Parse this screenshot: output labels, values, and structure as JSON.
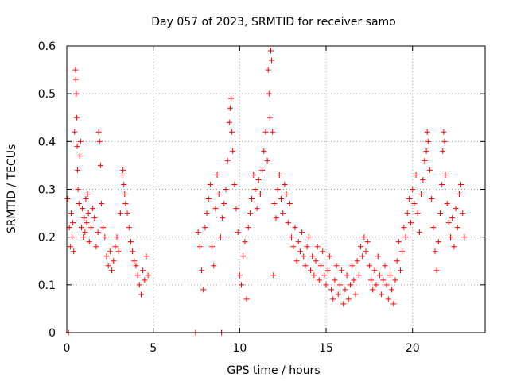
{
  "chart_data": {
    "type": "scatter",
    "title": "Day 057 of 2023, SRMTID for receiver samo",
    "xlabel": "GPS time / hours",
    "ylabel": "SRMTID / TECUs",
    "xlim": [
      0,
      24.2
    ],
    "ylim": [
      0,
      0.6
    ],
    "xticks": [
      0,
      5,
      10,
      15,
      20
    ],
    "xtick_labels": [
      "0",
      "5",
      "10",
      "15",
      "20"
    ],
    "yticks": [
      0,
      0.1,
      0.2,
      0.3,
      0.4,
      0.5,
      0.6
    ],
    "ytick_labels": [
      "0",
      "0.1",
      "0.2",
      "0.3",
      "0.4",
      "0.5",
      "0.6"
    ],
    "grid": true,
    "marker": "+",
    "color": "#ff0000",
    "series": [
      {
        "name": "SRMTID",
        "points": [
          [
            0.05,
            0.28
          ],
          [
            0.1,
            0.0
          ],
          [
            0.15,
            0.22
          ],
          [
            0.2,
            0.18
          ],
          [
            0.25,
            0.25
          ],
          [
            0.3,
            0.2
          ],
          [
            0.35,
            0.23
          ],
          [
            0.4,
            0.17
          ],
          [
            0.45,
            0.42
          ],
          [
            0.5,
            0.55
          ],
          [
            0.52,
            0.53
          ],
          [
            0.55,
            0.5
          ],
          [
            0.58,
            0.45
          ],
          [
            0.6,
            0.39
          ],
          [
            0.62,
            0.34
          ],
          [
            0.65,
            0.3
          ],
          [
            0.7,
            0.27
          ],
          [
            0.75,
            0.37
          ],
          [
            0.8,
            0.4
          ],
          [
            0.85,
            0.22
          ],
          [
            0.9,
            0.26
          ],
          [
            0.95,
            0.2
          ],
          [
            1.0,
            0.24
          ],
          [
            1.05,
            0.21
          ],
          [
            1.1,
            0.28
          ],
          [
            1.15,
            0.23
          ],
          [
            1.2,
            0.29
          ],
          [
            1.25,
            0.25
          ],
          [
            1.3,
            0.19
          ],
          [
            1.4,
            0.22
          ],
          [
            1.5,
            0.26
          ],
          [
            1.6,
            0.24
          ],
          [
            1.7,
            0.18
          ],
          [
            1.8,
            0.21
          ],
          [
            1.85,
            0.42
          ],
          [
            1.9,
            0.4
          ],
          [
            1.95,
            0.35
          ],
          [
            2.0,
            0.27
          ],
          [
            2.1,
            0.22
          ],
          [
            2.2,
            0.2
          ],
          [
            2.3,
            0.16
          ],
          [
            2.4,
            0.14
          ],
          [
            2.5,
            0.17
          ],
          [
            2.6,
            0.13
          ],
          [
            2.7,
            0.15
          ],
          [
            2.8,
            0.18
          ],
          [
            2.9,
            0.2
          ],
          [
            3.0,
            0.17
          ],
          [
            3.1,
            0.25
          ],
          [
            3.2,
            0.33
          ],
          [
            3.25,
            0.34
          ],
          [
            3.3,
            0.31
          ],
          [
            3.35,
            0.29
          ],
          [
            3.4,
            0.27
          ],
          [
            3.5,
            0.25
          ],
          [
            3.6,
            0.22
          ],
          [
            3.7,
            0.19
          ],
          [
            3.8,
            0.17
          ],
          [
            3.9,
            0.15
          ],
          [
            4.0,
            0.14
          ],
          [
            4.1,
            0.12
          ],
          [
            4.2,
            0.1
          ],
          [
            4.3,
            0.08
          ],
          [
            4.4,
            0.13
          ],
          [
            4.5,
            0.11
          ],
          [
            4.6,
            0.16
          ],
          [
            4.7,
            0.12
          ],
          [
            7.45,
            0.0
          ],
          [
            7.6,
            0.21
          ],
          [
            7.7,
            0.18
          ],
          [
            7.8,
            0.13
          ],
          [
            7.9,
            0.09
          ],
          [
            8.0,
            0.22
          ],
          [
            8.1,
            0.25
          ],
          [
            8.2,
            0.28
          ],
          [
            8.3,
            0.31
          ],
          [
            8.4,
            0.18
          ],
          [
            8.5,
            0.14
          ],
          [
            8.6,
            0.26
          ],
          [
            8.7,
            0.33
          ],
          [
            8.8,
            0.29
          ],
          [
            8.9,
            0.2
          ],
          [
            8.95,
            0.0
          ],
          [
            9.0,
            0.24
          ],
          [
            9.1,
            0.27
          ],
          [
            9.2,
            0.3
          ],
          [
            9.3,
            0.36
          ],
          [
            9.4,
            0.44
          ],
          [
            9.45,
            0.47
          ],
          [
            9.5,
            0.49
          ],
          [
            9.55,
            0.42
          ],
          [
            9.6,
            0.38
          ],
          [
            9.7,
            0.31
          ],
          [
            9.8,
            0.26
          ],
          [
            9.9,
            0.21
          ],
          [
            10.0,
            0.12
          ],
          [
            10.1,
            0.1
          ],
          [
            10.2,
            0.16
          ],
          [
            10.3,
            0.19
          ],
          [
            10.4,
            0.07
          ],
          [
            10.5,
            0.22
          ],
          [
            10.6,
            0.25
          ],
          [
            10.7,
            0.28
          ],
          [
            10.8,
            0.33
          ],
          [
            10.9,
            0.3
          ],
          [
            11.0,
            0.26
          ],
          [
            11.1,
            0.32
          ],
          [
            11.2,
            0.29
          ],
          [
            11.3,
            0.34
          ],
          [
            11.4,
            0.38
          ],
          [
            11.5,
            0.42
          ],
          [
            11.6,
            0.36
          ],
          [
            11.65,
            0.55
          ],
          [
            11.7,
            0.5
          ],
          [
            11.75,
            0.45
          ],
          [
            11.8,
            0.59
          ],
          [
            11.85,
            0.57
          ],
          [
            11.9,
            0.42
          ],
          [
            11.95,
            0.12
          ],
          [
            12.0,
            0.27
          ],
          [
            12.1,
            0.24
          ],
          [
            12.2,
            0.3
          ],
          [
            12.3,
            0.33
          ],
          [
            12.4,
            0.28
          ],
          [
            12.5,
            0.25
          ],
          [
            12.6,
            0.31
          ],
          [
            12.7,
            0.29
          ],
          [
            12.8,
            0.23
          ],
          [
            12.9,
            0.27
          ],
          [
            13.0,
            0.2
          ],
          [
            13.1,
            0.18
          ],
          [
            13.2,
            0.22
          ],
          [
            13.3,
            0.15
          ],
          [
            13.4,
            0.19
          ],
          [
            13.5,
            0.17
          ],
          [
            13.6,
            0.21
          ],
          [
            13.7,
            0.16
          ],
          [
            13.8,
            0.14
          ],
          [
            13.9,
            0.18
          ],
          [
            14.0,
            0.2
          ],
          [
            14.1,
            0.13
          ],
          [
            14.2,
            0.16
          ],
          [
            14.3,
            0.12
          ],
          [
            14.4,
            0.15
          ],
          [
            14.5,
            0.18
          ],
          [
            14.6,
            0.11
          ],
          [
            14.7,
            0.14
          ],
          [
            14.8,
            0.17
          ],
          [
            14.9,
            0.12
          ],
          [
            15.0,
            0.1
          ],
          [
            15.1,
            0.13
          ],
          [
            15.2,
            0.16
          ],
          [
            15.3,
            0.09
          ],
          [
            15.4,
            0.07
          ],
          [
            15.5,
            0.11
          ],
          [
            15.6,
            0.14
          ],
          [
            15.7,
            0.08
          ],
          [
            15.8,
            0.1
          ],
          [
            15.9,
            0.13
          ],
          [
            16.0,
            0.06
          ],
          [
            16.1,
            0.09
          ],
          [
            16.2,
            0.12
          ],
          [
            16.3,
            0.07
          ],
          [
            16.4,
            0.1
          ],
          [
            16.5,
            0.14
          ],
          [
            16.6,
            0.11
          ],
          [
            16.7,
            0.08
          ],
          [
            16.8,
            0.15
          ],
          [
            16.9,
            0.12
          ],
          [
            17.0,
            0.18
          ],
          [
            17.1,
            0.16
          ],
          [
            17.2,
            0.2
          ],
          [
            17.3,
            0.17
          ],
          [
            17.4,
            0.19
          ],
          [
            17.5,
            0.14
          ],
          [
            17.6,
            0.11
          ],
          [
            17.7,
            0.09
          ],
          [
            17.8,
            0.13
          ],
          [
            17.9,
            0.1
          ],
          [
            18.0,
            0.16
          ],
          [
            18.1,
            0.12
          ],
          [
            18.2,
            0.08
          ],
          [
            18.3,
            0.11
          ],
          [
            18.4,
            0.14
          ],
          [
            18.5,
            0.1
          ],
          [
            18.6,
            0.07
          ],
          [
            18.7,
            0.12
          ],
          [
            18.8,
            0.09
          ],
          [
            18.9,
            0.06
          ],
          [
            19.0,
            0.11
          ],
          [
            19.1,
            0.15
          ],
          [
            19.2,
            0.19
          ],
          [
            19.3,
            0.13
          ],
          [
            19.4,
            0.17
          ],
          [
            19.5,
            0.22
          ],
          [
            19.6,
            0.2
          ],
          [
            19.7,
            0.25
          ],
          [
            19.8,
            0.28
          ],
          [
            19.9,
            0.23
          ],
          [
            20.0,
            0.3
          ],
          [
            20.1,
            0.27
          ],
          [
            20.2,
            0.33
          ],
          [
            20.3,
            0.25
          ],
          [
            20.4,
            0.21
          ],
          [
            20.5,
            0.29
          ],
          [
            20.6,
            0.32
          ],
          [
            20.7,
            0.36
          ],
          [
            20.8,
            0.38
          ],
          [
            20.85,
            0.42
          ],
          [
            20.9,
            0.4
          ],
          [
            21.0,
            0.34
          ],
          [
            21.1,
            0.28
          ],
          [
            21.2,
            0.22
          ],
          [
            21.3,
            0.17
          ],
          [
            21.4,
            0.13
          ],
          [
            21.5,
            0.19
          ],
          [
            21.6,
            0.25
          ],
          [
            21.7,
            0.31
          ],
          [
            21.75,
            0.38
          ],
          [
            21.8,
            0.42
          ],
          [
            21.85,
            0.4
          ],
          [
            21.9,
            0.33
          ],
          [
            22.0,
            0.27
          ],
          [
            22.1,
            0.23
          ],
          [
            22.2,
            0.2
          ],
          [
            22.3,
            0.24
          ],
          [
            22.4,
            0.18
          ],
          [
            22.5,
            0.26
          ],
          [
            22.6,
            0.22
          ],
          [
            22.7,
            0.29
          ],
          [
            22.8,
            0.31
          ],
          [
            22.9,
            0.25
          ],
          [
            23.0,
            0.2
          ]
        ]
      }
    ]
  }
}
